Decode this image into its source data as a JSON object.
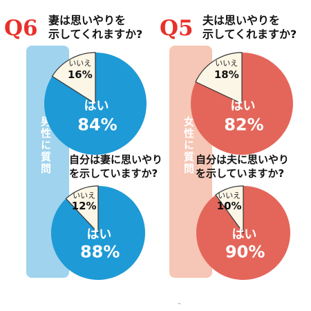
{
  "colors": {
    "male_band": "#9fd3ee",
    "male_pie": "#1e9ad6",
    "female_band": "#f6c6b6",
    "female_pie": "#e4665a",
    "no_slice": "#fbf6e6",
    "badge": "#e8302a"
  },
  "male": {
    "band_label": "男性に質問",
    "badge": "Q6",
    "question1_line1": "妻は思いやりを",
    "question1_line2": "示してくれますか?",
    "question2_line1": "自分は妻に思いやり",
    "question2_line2": "を示していますか?"
  },
  "female": {
    "band_label": "女性に質問",
    "badge": "Q5",
    "question1_line1": "夫は思いやりを",
    "question1_line2": "示してくれますか?",
    "question2_line1": "自分は夫に思いやり",
    "question2_line2": "を示していますか?"
  },
  "chart_data": [
    {
      "type": "pie",
      "categories": [
        "はい",
        "いいえ"
      ],
      "values": [
        84,
        16
      ],
      "value_labels": [
        "84%",
        "16%"
      ]
    },
    {
      "type": "pie",
      "categories": [
        "はい",
        "いいえ"
      ],
      "values": [
        88,
        12
      ],
      "value_labels": [
        "88%",
        "12%"
      ]
    },
    {
      "type": "pie",
      "categories": [
        "はい",
        "いいえ"
      ],
      "values": [
        82,
        18
      ],
      "value_labels": [
        "82%",
        "18%"
      ]
    },
    {
      "type": "pie",
      "categories": [
        "はい",
        "いいえ"
      ],
      "values": [
        90,
        10
      ],
      "value_labels": [
        "90%",
        "10%"
      ]
    }
  ]
}
